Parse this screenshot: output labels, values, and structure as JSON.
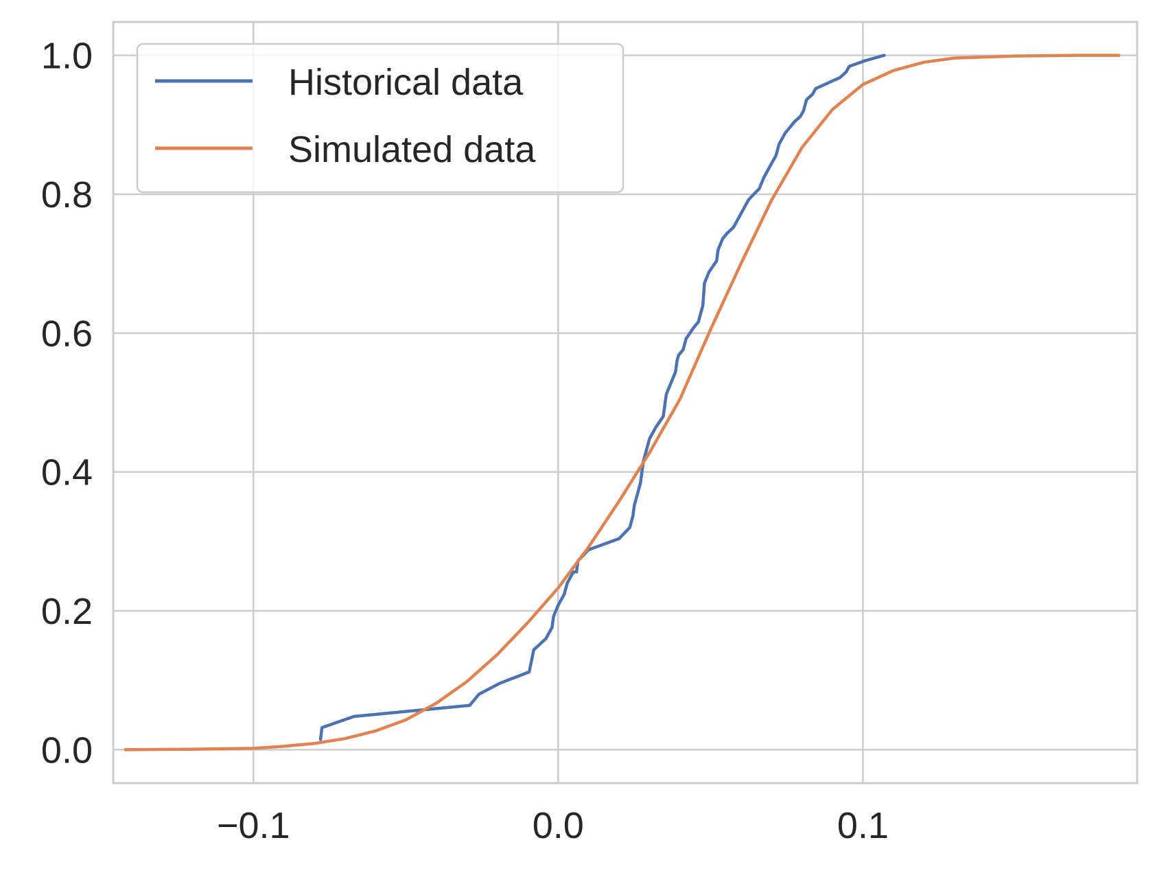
{
  "chart_data": {
    "type": "line",
    "title": "",
    "xlabel": "",
    "ylabel": "",
    "xlim": [
      -0.146,
      0.19
    ],
    "ylim": [
      -0.048,
      1.048
    ],
    "xticks": [
      -0.1,
      0.0,
      0.1
    ],
    "xtick_labels": [
      "−0.1",
      "0.0",
      "0.1"
    ],
    "yticks": [
      0.0,
      0.2,
      0.4,
      0.6,
      0.8,
      1.0
    ],
    "ytick_labels": [
      "0.0",
      "0.2",
      "0.4",
      "0.6",
      "0.8",
      "1.0"
    ],
    "grid": true,
    "legend_position": "top-left",
    "series": [
      {
        "name": "Historical data",
        "color": "#4c72b0",
        "x": [
          -0.078,
          -0.0775,
          -0.067,
          -0.029,
          -0.026,
          -0.019,
          -0.0095,
          -0.008,
          -0.004,
          -0.002,
          -0.0015,
          0.0,
          0.002,
          0.003,
          0.005,
          0.006,
          0.0065,
          0.01,
          0.02,
          0.0235,
          0.0245,
          0.025,
          0.026,
          0.027,
          0.0275,
          0.028,
          0.029,
          0.03,
          0.031,
          0.032,
          0.0345,
          0.035,
          0.0355,
          0.037,
          0.0385,
          0.039,
          0.0395,
          0.041,
          0.042,
          0.0445,
          0.046,
          0.0475,
          0.048,
          0.0495,
          0.052,
          0.0525,
          0.054,
          0.0555,
          0.0575,
          0.0595,
          0.0615,
          0.0625,
          0.066,
          0.0675,
          0.0695,
          0.0715,
          0.0725,
          0.0745,
          0.0775,
          0.0795,
          0.0805,
          0.0815,
          0.0835,
          0.0845,
          0.0885,
          0.0925,
          0.0945,
          0.0955,
          0.1005,
          0.107
        ],
        "y": [
          0.015,
          0.032,
          0.048,
          0.064,
          0.08,
          0.096,
          0.112,
          0.144,
          0.16,
          0.176,
          0.192,
          0.208,
          0.224,
          0.24,
          0.256,
          0.256,
          0.272,
          0.288,
          0.304,
          0.32,
          0.336,
          0.352,
          0.368,
          0.384,
          0.4,
          0.416,
          0.432,
          0.448,
          0.456,
          0.464,
          0.48,
          0.496,
          0.512,
          0.528,
          0.544,
          0.56,
          0.568,
          0.576,
          0.592,
          0.608,
          0.616,
          0.64,
          0.672,
          0.688,
          0.704,
          0.72,
          0.736,
          0.744,
          0.752,
          0.768,
          0.784,
          0.792,
          0.808,
          0.824,
          0.84,
          0.856,
          0.872,
          0.888,
          0.904,
          0.912,
          0.92,
          0.936,
          0.944,
          0.952,
          0.96,
          0.968,
          0.976,
          0.984,
          0.992,
          1.0
        ]
      },
      {
        "name": "Simulated data",
        "color": "#dd8452",
        "x": [
          -0.142,
          -0.12,
          -0.1,
          -0.09,
          -0.08,
          -0.07,
          -0.06,
          -0.05,
          -0.04,
          -0.03,
          -0.02,
          -0.01,
          0.0,
          0.01,
          0.02,
          0.03,
          0.04,
          0.045,
          0.05,
          0.06,
          0.07,
          0.08,
          0.09,
          0.1,
          0.11,
          0.12,
          0.13,
          0.15,
          0.17,
          0.184
        ],
        "y": [
          0.0,
          0.0008,
          0.002,
          0.005,
          0.009,
          0.016,
          0.027,
          0.043,
          0.067,
          0.098,
          0.137,
          0.183,
          0.233,
          0.292,
          0.358,
          0.428,
          0.505,
          0.555,
          0.605,
          0.7,
          0.791,
          0.867,
          0.922,
          0.958,
          0.978,
          0.99,
          0.996,
          0.999,
          1.0,
          1.0
        ]
      }
    ]
  }
}
